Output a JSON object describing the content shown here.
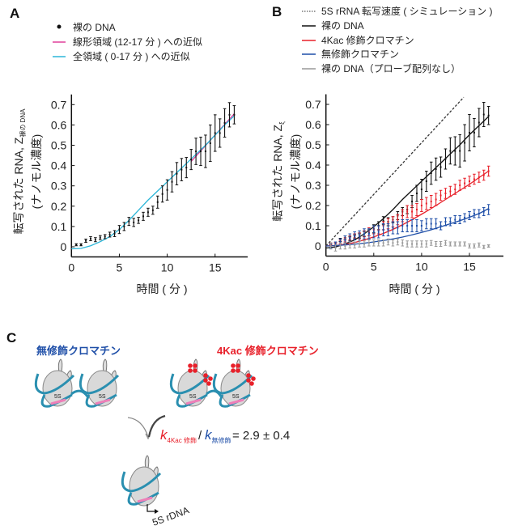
{
  "panels": {
    "a": "A",
    "b": "B",
    "c": "C"
  },
  "chart_data": [
    {
      "type": "scatter",
      "panel": "A",
      "xlabel": "時間 ( 分 )",
      "ylabel_line1": "転写された RNA, Z",
      "ylabel_subscript": "裸の DNA",
      "ylabel_line2": "(ナノモル濃度)",
      "xlim": [
        0,
        18.5
      ],
      "ylim": [
        -0.05,
        0.75
      ],
      "xticks": [
        0,
        5,
        10,
        15
      ],
      "yticks": [
        0,
        0.1,
        0.2,
        0.3,
        0.4,
        0.5,
        0.6,
        0.7
      ],
      "ytick_labels": [
        "0",
        "0.1",
        "0.2",
        "0.3",
        "0.4",
        "0.5",
        "0.6",
        "0.7"
      ],
      "legend": [
        {
          "label": "裸の DNA",
          "marker": "dot",
          "color": "#111111"
        },
        {
          "label": "線形領域 (12-17 分 ) への近似",
          "marker": "line",
          "color": "#e0409a"
        },
        {
          "label": "全領域 ( 0-17 分 ) への近似",
          "marker": "line",
          "color": "#2ab6d8"
        }
      ],
      "series": [
        {
          "name": "裸の DNA",
          "kind": "points",
          "color": "#111111",
          "x": [
            0.5,
            1,
            1.5,
            2,
            2.5,
            3,
            3.5,
            4,
            4.5,
            5,
            5.5,
            6,
            6.5,
            7,
            7.5,
            8,
            8.5,
            9,
            9.5,
            10,
            10.5,
            11,
            11.5,
            12,
            12.5,
            13,
            13.5,
            14,
            14.5,
            15,
            15.5,
            16,
            16.5,
            17
          ],
          "y": [
            0.01,
            0.01,
            0.03,
            0.04,
            0.035,
            0.045,
            0.05,
            0.06,
            0.065,
            0.085,
            0.1,
            0.125,
            0.12,
            0.13,
            0.15,
            0.17,
            0.18,
            0.22,
            0.26,
            0.28,
            0.32,
            0.36,
            0.38,
            0.39,
            0.43,
            0.47,
            0.47,
            0.47,
            0.51,
            0.56,
            0.56,
            0.61,
            0.65,
            0.65
          ],
          "err": [
            0.005,
            0.005,
            0.008,
            0.01,
            0.01,
            0.01,
            0.01,
            0.012,
            0.015,
            0.02,
            0.02,
            0.02,
            0.02,
            0.015,
            0.02,
            0.02,
            0.02,
            0.03,
            0.04,
            0.05,
            0.05,
            0.055,
            0.055,
            0.05,
            0.05,
            0.065,
            0.07,
            0.08,
            0.09,
            0.09,
            0.07,
            0.07,
            0.06,
            0.045
          ]
        },
        {
          "name": "線形領域 (12-17 分 ) への近似",
          "kind": "line",
          "color": "#e0409a",
          "x": [
            12.5,
            17
          ],
          "y": [
            0.42,
            0.655
          ]
        },
        {
          "name": "全領域 ( 0-17 分 ) への近似",
          "kind": "line",
          "color": "#2ab6d8",
          "x": [
            0,
            1,
            2,
            3,
            4,
            5,
            6,
            7,
            8,
            9,
            10,
            11,
            12,
            13,
            14,
            15,
            16,
            17
          ],
          "y": [
            -0.01,
            -0.008,
            0.005,
            0.025,
            0.05,
            0.085,
            0.13,
            0.18,
            0.23,
            0.275,
            0.32,
            0.365,
            0.41,
            0.455,
            0.5,
            0.55,
            0.6,
            0.645
          ]
        }
      ]
    },
    {
      "type": "scatter",
      "panel": "B",
      "xlabel": "時間 ( 分 )",
      "ylabel_line1": "転写された RNA, Z",
      "ylabel_subscript": "ξ",
      "ylabel_line2": "(ナノモル濃度)",
      "xlim": [
        0,
        18.5
      ],
      "ylim": [
        -0.05,
        0.75
      ],
      "xticks": [
        0,
        5,
        10,
        15
      ],
      "yticks": [
        0,
        0.1,
        0.2,
        0.3,
        0.4,
        0.5,
        0.6,
        0.7
      ],
      "ytick_labels": [
        "0",
        "0.1",
        "0.2",
        "0.3",
        "0.4",
        "0.5",
        "0.6",
        "0.7"
      ],
      "legend": [
        {
          "label": "5S rRNA 転写速度 ( シミュレーション )",
          "marker": "dotted",
          "color": "#333333"
        },
        {
          "label": "裸の DNA",
          "marker": "line",
          "color": "#111111"
        },
        {
          "label": "4Kac 修飾クロマチン",
          "marker": "line",
          "color": "#e8202a"
        },
        {
          "label": "無修飾クロマチン",
          "marker": "line",
          "color": "#1f4fa8"
        },
        {
          "label": "裸の DNA（プローブ配列なし）",
          "marker": "line",
          "color": "#999999"
        }
      ],
      "series": [
        {
          "name": "5S rRNA 転写速度 ( シミュレーション )",
          "kind": "dashed",
          "color": "#333333",
          "x": [
            0,
            14.4
          ],
          "y": [
            0,
            0.735
          ]
        },
        {
          "name": "裸の DNA",
          "kind": "fit+points",
          "color": "#111111",
          "fit_x": [
            0,
            1,
            2,
            3,
            4,
            5,
            6,
            7,
            8,
            9,
            10,
            11,
            12,
            13,
            14,
            15,
            16,
            17
          ],
          "fit_y": [
            -0.01,
            -0.005,
            0.01,
            0.03,
            0.06,
            0.095,
            0.135,
            0.18,
            0.23,
            0.275,
            0.32,
            0.365,
            0.41,
            0.455,
            0.5,
            0.55,
            0.595,
            0.64
          ],
          "x": [
            0.5,
            1,
            1.5,
            2,
            2.5,
            3,
            3.5,
            4,
            4.5,
            5,
            5.5,
            6,
            6.5,
            7,
            7.5,
            8,
            8.5,
            9,
            9.5,
            10,
            10.5,
            11,
            11.5,
            12,
            12.5,
            13,
            13.5,
            14,
            14.5,
            15,
            15.5,
            16,
            16.5,
            17
          ],
          "y": [
            0.01,
            0.01,
            0.03,
            0.04,
            0.035,
            0.045,
            0.05,
            0.06,
            0.065,
            0.085,
            0.1,
            0.125,
            0.12,
            0.13,
            0.15,
            0.17,
            0.18,
            0.22,
            0.26,
            0.28,
            0.32,
            0.36,
            0.38,
            0.39,
            0.43,
            0.47,
            0.47,
            0.47,
            0.51,
            0.56,
            0.56,
            0.61,
            0.65,
            0.645
          ],
          "err": [
            0.005,
            0.005,
            0.008,
            0.01,
            0.01,
            0.01,
            0.01,
            0.012,
            0.015,
            0.02,
            0.02,
            0.02,
            0.02,
            0.015,
            0.02,
            0.02,
            0.02,
            0.03,
            0.04,
            0.05,
            0.05,
            0.055,
            0.055,
            0.05,
            0.05,
            0.065,
            0.07,
            0.08,
            0.09,
            0.09,
            0.07,
            0.07,
            0.06,
            0.045
          ]
        },
        {
          "name": "4Kac 修飾クロマチン",
          "kind": "fit+points",
          "color": "#e8202a",
          "fit_x": [
            0,
            1,
            2,
            3,
            4,
            5,
            6,
            7,
            8,
            9,
            10,
            11,
            12,
            13,
            14,
            15,
            16,
            17
          ],
          "fit_y": [
            0,
            0.002,
            0.008,
            0.017,
            0.03,
            0.045,
            0.062,
            0.082,
            0.105,
            0.13,
            0.157,
            0.185,
            0.215,
            0.245,
            0.275,
            0.305,
            0.338,
            0.37
          ],
          "x": [
            0.5,
            1,
            1.5,
            2,
            2.5,
            3,
            3.5,
            4,
            4.5,
            5,
            5.5,
            6,
            6.5,
            7,
            7.5,
            8,
            8.5,
            9,
            9.5,
            10,
            10.5,
            11,
            11.5,
            12,
            12.5,
            13,
            13.5,
            14,
            14.5,
            15,
            15.5,
            16,
            16.5,
            17
          ],
          "y": [
            0.01,
            0.01,
            0.02,
            0.03,
            0.04,
            0.05,
            0.05,
            0.06,
            0.07,
            0.08,
            0.08,
            0.1,
            0.11,
            0.12,
            0.13,
            0.15,
            0.17,
            0.17,
            0.18,
            0.2,
            0.21,
            0.22,
            0.23,
            0.25,
            0.26,
            0.27,
            0.28,
            0.3,
            0.31,
            0.32,
            0.33,
            0.34,
            0.35,
            0.37
          ],
          "err": [
            0.005,
            0.005,
            0.008,
            0.01,
            0.01,
            0.01,
            0.015,
            0.015,
            0.02,
            0.02,
            0.02,
            0.02,
            0.025,
            0.025,
            0.025,
            0.03,
            0.03,
            0.03,
            0.03,
            0.03,
            0.03,
            0.03,
            0.03,
            0.025,
            0.025,
            0.025,
            0.025,
            0.025,
            0.025,
            0.025,
            0.025,
            0.025,
            0.025,
            0.025
          ]
        },
        {
          "name": "無修飾クロマチン",
          "kind": "fit+points",
          "color": "#1f4fa8",
          "fit_x": [
            0,
            1,
            2,
            3,
            4,
            5,
            6,
            7,
            8,
            9,
            10,
            11,
            12,
            13,
            14,
            15,
            16,
            17
          ],
          "fit_y": [
            0,
            0.002,
            0.005,
            0.009,
            0.014,
            0.02,
            0.027,
            0.035,
            0.044,
            0.055,
            0.067,
            0.08,
            0.095,
            0.11,
            0.125,
            0.142,
            0.16,
            0.185
          ],
          "x": [
            0.5,
            1,
            1.5,
            2,
            2.5,
            3,
            3.5,
            4,
            4.5,
            5,
            5.5,
            6,
            6.5,
            7,
            7.5,
            8,
            8.5,
            9,
            9.5,
            10,
            10.5,
            11,
            11.5,
            12,
            12.5,
            13,
            13.5,
            14,
            14.5,
            15,
            15.5,
            16,
            16.5,
            17
          ],
          "y": [
            0.0,
            0.01,
            0.02,
            0.03,
            0.04,
            0.05,
            0.05,
            0.06,
            0.06,
            0.07,
            0.07,
            0.08,
            0.08,
            0.09,
            0.09,
            0.1,
            0.1,
            0.1,
            0.1,
            0.1,
            0.11,
            0.11,
            0.11,
            0.1,
            0.12,
            0.12,
            0.13,
            0.13,
            0.14,
            0.15,
            0.16,
            0.16,
            0.17,
            0.18
          ],
          "err": [
            0.01,
            0.01,
            0.015,
            0.02,
            0.02,
            0.02,
            0.025,
            0.025,
            0.025,
            0.03,
            0.03,
            0.03,
            0.03,
            0.03,
            0.03,
            0.03,
            0.03,
            0.03,
            0.03,
            0.025,
            0.025,
            0.025,
            0.025,
            0.02,
            0.02,
            0.02,
            0.02,
            0.02,
            0.02,
            0.02,
            0.02,
            0.02,
            0.02,
            0.025
          ]
        },
        {
          "name": "裸の DNA（プローブ配列なし）",
          "kind": "points",
          "color": "#999999",
          "x": [
            0.5,
            1,
            1.5,
            2,
            2.5,
            3,
            3.5,
            4,
            4.5,
            5,
            5.5,
            6,
            6.5,
            7,
            7.5,
            8,
            8.5,
            9,
            9.5,
            10,
            10.5,
            11,
            11.5,
            12,
            12.5,
            13,
            13.5,
            14,
            14.5,
            15,
            15.5,
            16,
            16.5,
            17
          ],
          "y": [
            0.0,
            -0.01,
            0.0,
            0.0,
            0.005,
            0.005,
            0.01,
            0.01,
            0.015,
            0.015,
            0.015,
            0.015,
            0.02,
            0.015,
            0.02,
            0.015,
            0.01,
            0.01,
            0.01,
            0.01,
            0.01,
            0.015,
            0.01,
            0.01,
            0.015,
            0.01,
            0.01,
            0.01,
            0.01,
            0.0,
            0.0,
            0.005,
            -0.005,
            0.0
          ],
          "err": [
            0.015,
            0.015,
            0.015,
            0.015,
            0.015,
            0.015,
            0.015,
            0.015,
            0.015,
            0.015,
            0.015,
            0.015,
            0.015,
            0.015,
            0.015,
            0.015,
            0.015,
            0.015,
            0.015,
            0.015,
            0.015,
            0.012,
            0.012,
            0.012,
            0.012,
            0.01,
            0.01,
            0.01,
            0.01,
            0.01,
            0.01,
            0.01,
            0.008,
            0.006
          ]
        }
      ]
    }
  ],
  "diagram": {
    "unmodified_label": "無修飾クロマチン",
    "modified_label": "4Kac 修飾クロマチン",
    "nucleosome_label": "5S",
    "k_symbol": "k",
    "k_mod_sub": "4Kac 修飾",
    "slash": "/",
    "k_unmod_sub": "無修飾",
    "ratio": "= 2.9 ± 0.4",
    "gene_label": "5S rDNA",
    "colors": {
      "unmodified": "#1f4fa8",
      "modified": "#e8202a",
      "dna": "#2a8fb0",
      "histone": "#d9d9d9",
      "site": "#ee7fb8"
    }
  }
}
